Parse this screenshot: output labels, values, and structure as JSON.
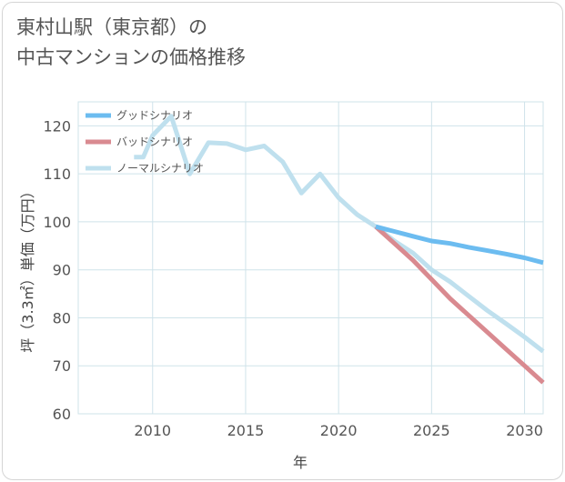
{
  "title": {
    "line1": "東村山駅（東京都）の",
    "line2": "中古マンションの価格推移"
  },
  "chart_data": {
    "type": "line",
    "title": "東村山駅（東京都）の中古マンションの価格推移",
    "xlabel": "年",
    "ylabel": "坪（3.3㎡）単価（万円）",
    "xlim": [
      2006,
      2031
    ],
    "ylim": [
      60,
      125
    ],
    "grid": true,
    "legend_position": "top-left",
    "x_ticks": [
      2010,
      2015,
      2020,
      2025,
      2030
    ],
    "x_tick_labels": [
      "2010",
      "2015",
      "2020",
      "2025",
      "2030"
    ],
    "y_ticks": [
      60,
      70,
      80,
      90,
      100,
      110,
      120
    ],
    "y_tick_labels": [
      "60",
      "70",
      "80",
      "90",
      "100",
      "110",
      "120"
    ],
    "series": [
      {
        "name": "グッドシナリオ",
        "color": "#6cbcf0",
        "x": [
          2022,
          2023,
          2024,
          2025,
          2026,
          2027,
          2028,
          2029,
          2030,
          2031
        ],
        "y": [
          99.0,
          98.0,
          97.0,
          96.0,
          95.5,
          94.7,
          94.0,
          93.3,
          92.5,
          91.5
        ]
      },
      {
        "name": "バッドシナリオ",
        "color": "#d98a90",
        "x": [
          2022,
          2023,
          2024,
          2025,
          2026,
          2027,
          2028,
          2029,
          2030,
          2031
        ],
        "y": [
          99.0,
          95.5,
          92.0,
          88.0,
          84.0,
          80.5,
          77.0,
          73.5,
          70.0,
          66.5
        ]
      },
      {
        "name": "ノーマルシナリオ",
        "color": "#bfe0ee",
        "x": [
          2009,
          2009.5,
          2010,
          2011,
          2012,
          2013,
          2014,
          2015,
          2016,
          2017,
          2018,
          2019,
          2020,
          2021,
          2022,
          2023,
          2024,
          2025,
          2026,
          2027,
          2028,
          2029,
          2030,
          2031
        ],
        "y": [
          113.5,
          113.5,
          118.0,
          122.0,
          110.0,
          116.5,
          116.3,
          115.0,
          115.8,
          112.5,
          106.0,
          110.0,
          105.0,
          101.5,
          99.0,
          96.0,
          93.5,
          90.0,
          87.5,
          84.5,
          81.5,
          78.8,
          76.0,
          73.0
        ]
      }
    ]
  }
}
